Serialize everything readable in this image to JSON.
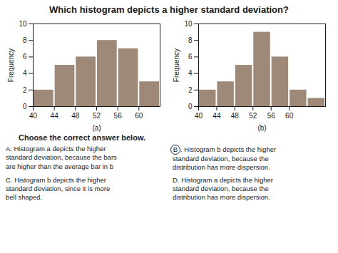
{
  "title": "Which histogram depicts a higher standard deviation?",
  "question": "Choose the correct answer below.",
  "annotations": [
    {
      "text": "A. Histogram a depicts the higher\nstandard deviation, because the bars\nare higher than the average bar in b"
    },
    {
      "text": "B. Histogram b depicts the higher\nstandard deviation, because the\ndistribution has more dispersion.",
      "marker": "circle"
    },
    {
      "text": "C. Histogram b depicts the higher\nstandard deviation, since it is more\nbell shaped."
    },
    {
      "text": "D. Histogram a depicts the higher\nstandard deviation, because the\ndistribution has more dispersion."
    }
  ],
  "chart_data": [
    {
      "type": "histogram",
      "xlabel": "(a)",
      "ylabel": "Frequency",
      "bins": [
        40,
        44,
        48,
        52,
        56,
        60,
        64
      ],
      "values": [
        2,
        5,
        6,
        8,
        7,
        3
      ],
      "color": "#9e8878",
      "xlim": [
        40,
        64
      ],
      "xticks": [
        40,
        44,
        48,
        52,
        56,
        60
      ],
      "ylim": [
        0,
        10
      ],
      "yticks": [
        0,
        2,
        4,
        6,
        8,
        10
      ],
      "grid": false
    },
    {
      "type": "histogram",
      "xlabel": "(b)",
      "ylabel": "Frequency",
      "bins": [
        40,
        44,
        48,
        52,
        56,
        60,
        64,
        68
      ],
      "values": [
        2,
        3,
        5,
        9,
        6,
        2,
        1
      ],
      "color": "#9e8878",
      "xlim": [
        40,
        68
      ],
      "xticks": [
        40,
        44,
        48,
        52,
        56,
        60
      ],
      "ylim": [
        0,
        10
      ],
      "yticks": [
        0,
        2,
        4,
        6,
        8,
        10
      ],
      "grid": false
    }
  ]
}
